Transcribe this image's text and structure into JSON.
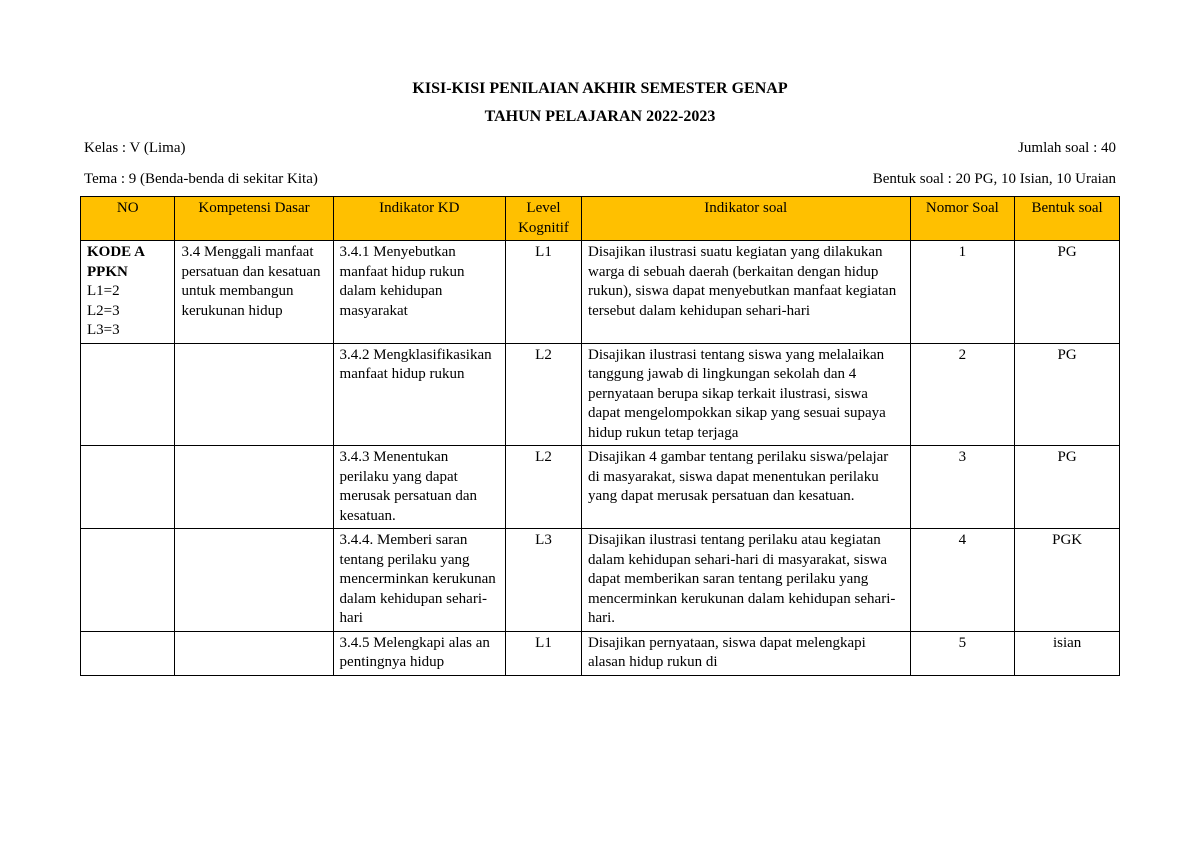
{
  "title1": "KISI-KISI PENILAIAN AKHIR SEMESTER GENAP",
  "title2": "TAHUN PELAJARAN 2022-2023",
  "meta": {
    "kelas_label": "Kelas : V (Lima)",
    "tema_label": "Tema   : 9 (Benda-benda di sekitar Kita)",
    "jumlah_label": "Jumlah soal : 40",
    "bentuk_label": "Bentuk soal : 20 PG, 10 Isian, 10 Uraian"
  },
  "headers": {
    "no": "NO",
    "kd": "Kompetensi Dasar",
    "ind": "Indikator KD",
    "level": "Level Kognitif",
    "indsoal": "Indikator soal",
    "nomor": "Nomor Soal",
    "bentuk": "Bentuk soal"
  },
  "rows": [
    {
      "no_html": "<span class='bold'>KODE A<br>PPKN</span><br>L1=2<br>L2=3<br>L3=3",
      "kd": "3.4 Menggali manfaat persatuan dan kesatuan untuk membangun kerukunan hidup",
      "ind": "3.4.1 Menyebutkan manfaat hidup rukun dalam kehidupan masyarakat",
      "level": "L1",
      "indsoal": "Disajikan ilustrasi suatu kegiatan yang dilakukan warga di sebuah daerah (berkaitan dengan hidup rukun), siswa dapat menyebutkan manfaat kegiatan tersebut dalam kehidupan sehari-hari",
      "nomor": "1",
      "bentuk": "PG"
    },
    {
      "no_html": "",
      "kd": "",
      "ind": "3.4.2 Mengklasifikasikan manfaat hidup rukun",
      "level": "L2",
      "indsoal": "Disajikan ilustrasi tentang siswa yang melalaikan tanggung jawab di lingkungan sekolah dan 4 pernyataan berupa sikap terkait ilustrasi, siswa dapat mengelompokkan sikap yang sesuai supaya hidup rukun tetap terjaga",
      "nomor": "2",
      "bentuk": "PG"
    },
    {
      "no_html": "",
      "kd": "",
      "ind": "3.4.3 Menentukan perilaku yang dapat merusak persatuan dan kesatuan.",
      "level": "L2",
      "indsoal": "Disajikan 4 gambar tentang perilaku siswa/pelajar di masyarakat, siswa dapat menentukan  perilaku yang dapat merusak persatuan dan kesatuan.",
      "nomor": "3",
      "bentuk": "PG"
    },
    {
      "no_html": "",
      "kd": "",
      "ind": "3.4.4. Memberi saran tentang perilaku yang mencerminkan kerukunan dalam kehidupan sehari-hari",
      "level": "L3",
      "indsoal": "Disajikan ilustrasi tentang perilaku atau kegiatan dalam kehidupan sehari-hari di masyarakat, siswa dapat memberikan saran tentang perilaku yang mencerminkan kerukunan dalam kehidupan sehari-hari.",
      "nomor": "4",
      "bentuk": "PGK"
    },
    {
      "no_html": "",
      "kd": "",
      "ind": "3.4.5 Melengkapi alas an pentingnya hidup",
      "level": "L1",
      "indsoal": "Disajikan pernyataan, siswa dapat melengkapi alasan hidup rukun di",
      "nomor": "5",
      "bentuk": "isian"
    }
  ],
  "styling": {
    "header_bg": "#ffc000",
    "border_color": "#000000",
    "font_family": "Times New Roman",
    "body_font_size": 15,
    "title_font_size": 16
  }
}
